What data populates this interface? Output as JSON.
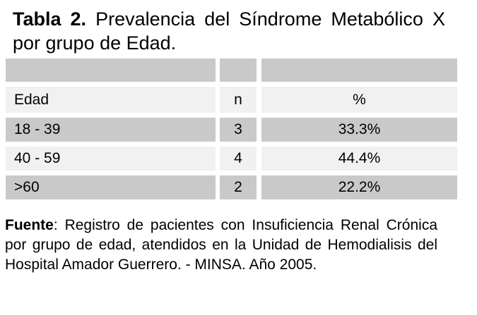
{
  "title": {
    "label": "Tabla 2.",
    "rest": "Prevalencia del Síndrome Metabólico X por grupo de Edad."
  },
  "table": {
    "columns": [
      "Edad",
      "n",
      "%"
    ],
    "rows": [
      {
        "edad": "18 - 39",
        "n": "3",
        "pct": "33.3%"
      },
      {
        "edad": "40 - 59",
        "n": "4",
        "pct": "44.4%"
      },
      {
        "edad": ">60",
        "n": "2",
        "pct": "22.2%"
      }
    ]
  },
  "footnote": {
    "label": "Fuente",
    "rest": ": Registro de pacientes con Insuficiencia Renal Crónica por grupo de edad, atendidos en la Unidad de Hemodialisis del Hospital Amador Guerrero. - MINSA. Año 2005."
  },
  "colors": {
    "row_dark": "#c9c9c9",
    "row_light": "#f1f1f1",
    "background": "#ffffff",
    "text": "#000000"
  }
}
